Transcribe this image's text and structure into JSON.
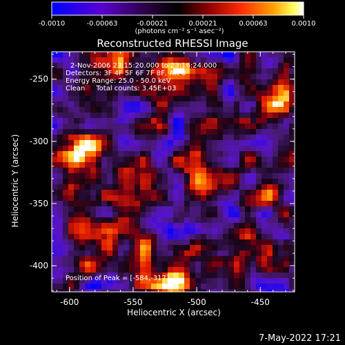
{
  "colorbar": {
    "ticks": [
      "-0.0010",
      "-0.00063",
      "-0.00021",
      "0.00021",
      "0.00063",
      "0.0010"
    ],
    "unit_label": "(photons cm⁻² s⁻¹ asec⁻²)",
    "colors": [
      "#0000ff",
      "#7a00d8",
      "#300040",
      "#000000",
      "#8a0000",
      "#ff2a00",
      "#ff9a00",
      "#ffff60",
      "#ffffff"
    ]
  },
  "plot": {
    "title": "Reconstructed RHESSI Image",
    "info_lines": [
      "2-Nov-2006 23:15:20.000 to 23:16:24.000",
      "Detectors: 3F 4F 5F 6F 7F 8F, Att 0",
      "Energy Range: 25.0 - 50.0 keV",
      "Clean     Total counts: 3.45E+03"
    ],
    "peak_text": "Position of Peak = [-584,-317]",
    "xlabel": "Heliocentric X (arcsec)",
    "ylabel": "Heliocentric Y (arcsec)",
    "xticks": [
      "-600",
      "-550",
      "-500",
      "-450"
    ],
    "yticks": [
      "-250",
      "-300",
      "-350",
      "-400"
    ],
    "xrange": [
      -614,
      -423
    ],
    "yrange": [
      -421,
      -228
    ]
  },
  "footer": {
    "timestamp": "7-May-2022 17:21"
  }
}
